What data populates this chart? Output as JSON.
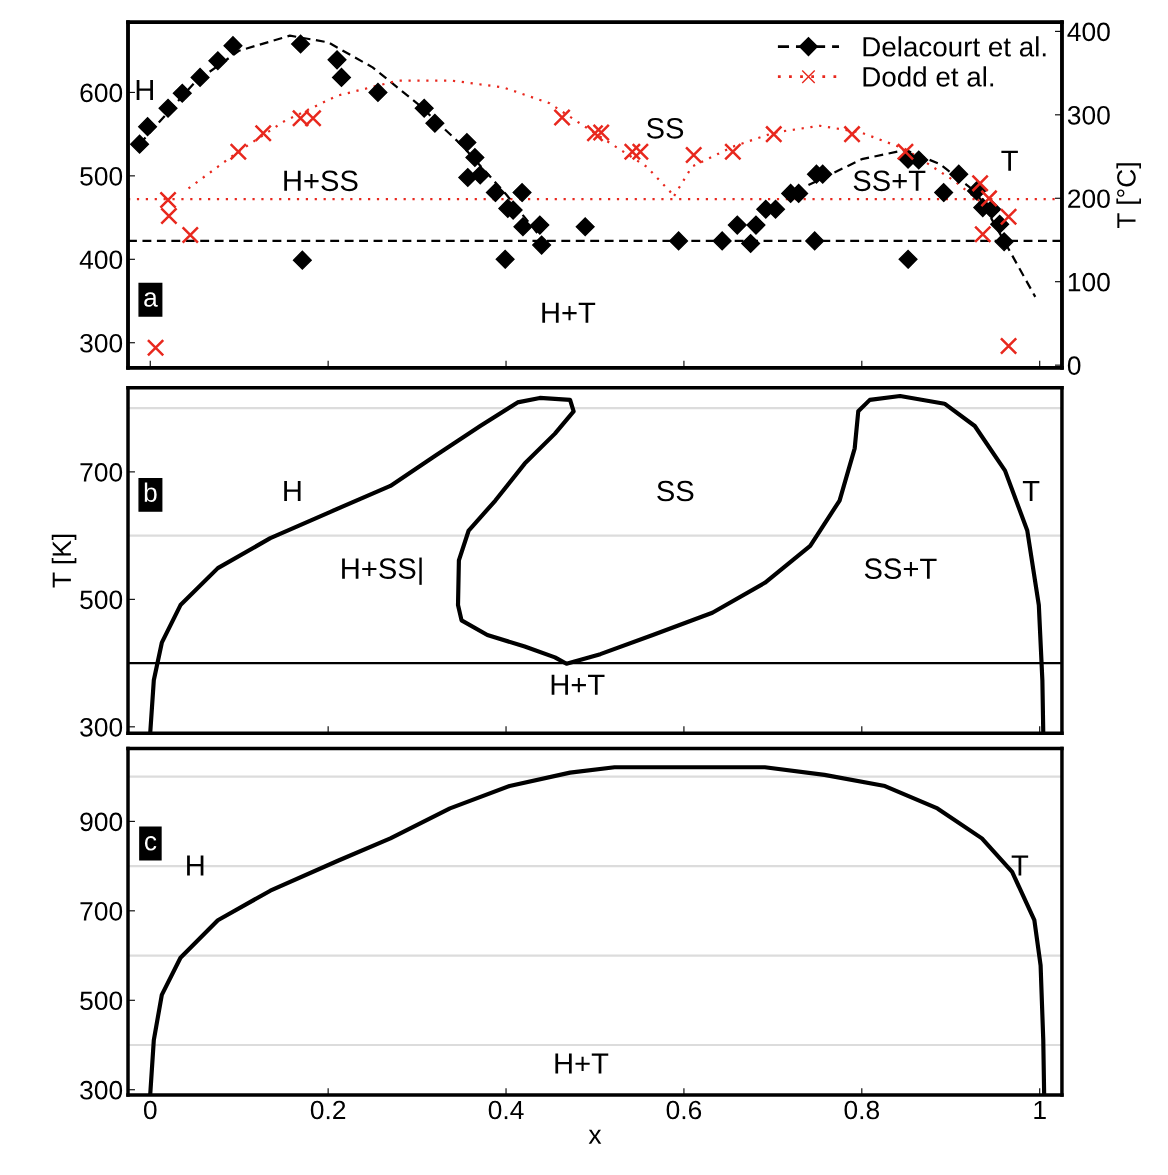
{
  "chart_data": [
    {
      "type": "scatter",
      "xlim": [
        -0.025,
        1.025
      ],
      "xticks": [
        0,
        0.2,
        0.4,
        0.6,
        0.8,
        1
      ],
      "ylim": [
        270,
        684
      ],
      "yticks": [
        300,
        400,
        500,
        600
      ],
      "y2lim": [
        -3.15,
        410.85
      ],
      "y2ticks": [
        0,
        100,
        200,
        300,
        400
      ],
      "y2label": "T [°C]",
      "tick_labels": "y",
      "legend": "top right",
      "series": [
        {
          "name": "Delacourt et al.",
          "type": "scatter",
          "color": "#000000",
          "marker": "diamond",
          "line_style": "dashed",
          "x": [
            -0.012,
            -0.003,
            0.02,
            0.036,
            0.056,
            0.076,
            0.093,
            0.169,
            0.21,
            0.215,
            0.256,
            0.308,
            0.32,
            0.356,
            0.365,
            0.357,
            0.371,
            0.388,
            0.402,
            0.408,
            0.418,
            0.419,
            0.438,
            0.44,
            0.399,
            0.171,
            0.489,
            0.594,
            0.643,
            0.66,
            0.675,
            0.681,
            0.692,
            0.703,
            0.72,
            0.729,
            0.749,
            0.756,
            0.747,
            0.852,
            0.864,
            0.852,
            0.892,
            0.909,
            0.929,
            0.936,
            0.946,
            0.955,
            0.96
          ],
          "values": [
            538,
            559,
            581,
            599,
            618,
            638,
            656,
            658,
            639,
            618,
            600,
            581,
            563,
            540,
            522,
            498,
            501,
            480,
            461,
            459,
            480,
            439,
            441,
            417,
            400,
            399,
            439,
            422,
            422,
            441,
            419,
            441,
            460,
            460,
            479,
            479,
            502,
            502,
            422,
            520,
            519,
            400,
            480,
            502,
            482,
            462,
            460,
            442,
            421
          ]
        },
        {
          "name": "Dodd et al.",
          "type": "scatter",
          "color": "#e8281e",
          "marker": "cross",
          "line_style": "dotted",
          "x": [
            0.02,
            0.021,
            0.045,
            0.099,
            0.127,
            0.169,
            0.183,
            0.463,
            0.5,
            0.507,
            0.542,
            0.551,
            0.611,
            0.655,
            0.701,
            0.789,
            0.849,
            0.933,
            0.943,
            0.936,
            0.965,
            0.006,
            0.965
          ],
          "values": [
            471,
            452,
            429,
            529,
            551,
            569,
            569,
            570,
            551,
            552,
            529,
            529,
            525,
            529,
            550,
            550,
            529,
            491,
            473,
            430,
            451,
            294,
            296
          ]
        },
        {
          "type": "line",
          "color": "#000000",
          "line_style": "dashed",
          "x": [
            -0.012,
            0.05,
            0.1,
            0.157,
            0.2,
            0.25,
            0.3,
            0.35,
            0.4,
            0.44
          ],
          "values": [
            538,
            612,
            650,
            668,
            660,
            630,
            587,
            537,
            478,
            425
          ]
        },
        {
          "type": "line",
          "color": "#000000",
          "line_style": "dashed",
          "x": [
            0.74,
            0.8,
            0.849,
            0.888,
            0.929,
            0.96,
            0.995
          ],
          "values": [
            489,
            520,
            531,
            514,
            480,
            422,
            355
          ]
        },
        {
          "type": "line",
          "color": "#e8281e",
          "line_style": "dotted",
          "x": [
            0.043,
            0.099,
            0.15,
            0.21,
            0.278,
            0.34,
            0.397,
            0.449,
            0.5,
            0.558,
            0.589
          ],
          "values": [
            485,
            529,
            565,
            596,
            614,
            614,
            606,
            587,
            551,
            511,
            476
          ]
        },
        {
          "type": "line",
          "color": "#e8281e",
          "line_style": "dotted",
          "x": [
            0.589,
            0.609,
            0.655,
            0.702,
            0.753,
            0.799,
            0.849,
            0.904,
            0.946
          ],
          "values": [
            476,
            511,
            535,
            552,
            560,
            552,
            532,
            494,
            458
          ]
        }
      ],
      "ref_lines": [
        {
          "axis": "y",
          "value": 422,
          "color": "#000000",
          "line_style": "dashed"
        },
        {
          "axis": "y",
          "value": 472,
          "color": "#e8281e",
          "line_style": "dotted"
        }
      ],
      "annotations": [
        "a",
        "H",
        "H+SS",
        "SS",
        "SS+T",
        "T",
        "H+T"
      ]
    },
    {
      "type": "line",
      "xlim": [
        -0.025,
        1.025
      ],
      "xticks": [
        0,
        0.2,
        0.4,
        0.6,
        0.8,
        1
      ],
      "ylim": [
        290,
        832
      ],
      "yticks": [
        300,
        500,
        700
      ],
      "ylabel": "T [K]",
      "tick_labels": "y",
      "series": [
        {
          "color": "#000000",
          "line_style": "solid",
          "x": [
            0.0,
            0.004,
            0.013,
            0.034,
            0.076,
            0.135,
            0.202,
            0.27,
            0.32,
            0.371,
            0.413,
            0.438,
            0.472,
            0.476,
            0.455,
            0.421,
            0.388,
            0.358,
            0.347,
            0.346,
            0.35,
            0.379,
            0.421,
            0.455,
            0.468,
            0.506,
            0.565,
            0.632,
            0.691,
            0.742,
            0.775,
            0.792,
            0.796,
            0.809,
            0.843,
            0.893,
            0.927,
            0.961,
            0.986,
            0.999,
            1.003,
            1.004
          ],
          "values": [
            291,
            373,
            432,
            491,
            549,
            596,
            637,
            678,
            725,
            772,
            809,
            816,
            813,
            795,
            760,
            713,
            655,
            608,
            561,
            491,
            467,
            444,
            426,
            409,
            399,
            414,
            444,
            479,
            526,
            584,
            655,
            737,
            795,
            813,
            819,
            807,
            772,
            702,
            608,
            491,
            373,
            291
          ]
        }
      ],
      "ref_lines": [
        {
          "axis": "y",
          "value": 400,
          "color": "#000000",
          "line_style": "solid"
        },
        {
          "axis": "y",
          "value": 600,
          "color": "#dcdcdc",
          "line_style": "solid"
        },
        {
          "axis": "y",
          "value": 800,
          "color": "#dcdcdc",
          "line_style": "solid"
        }
      ],
      "annotations": [
        "b",
        "H",
        "SS",
        "T",
        "H+SS|",
        "SS+T",
        "H+T"
      ]
    },
    {
      "type": "line",
      "xlim": [
        -0.025,
        1.025
      ],
      "xticks": [
        0,
        0.2,
        0.4,
        0.6,
        0.8,
        1
      ],
      "xlabel": "x",
      "ylim": [
        288,
        1063
      ],
      "yticks": [
        300,
        500,
        700,
        900
      ],
      "series": [
        {
          "color": "#000000",
          "line_style": "solid",
          "x": [
            0.0,
            0.004,
            0.013,
            0.034,
            0.076,
            0.135,
            0.211,
            0.27,
            0.337,
            0.404,
            0.472,
            0.522,
            0.691,
            0.758,
            0.826,
            0.885,
            0.935,
            0.969,
            0.994,
            1.001,
            1.004,
            1.005
          ],
          "values": [
            290,
            411,
            512,
            595,
            679,
            745,
            812,
            862,
            929,
            979,
            1009,
            1021,
            1021,
            1004,
            979,
            929,
            862,
            787,
            679,
            578,
            411,
            290
          ]
        }
      ],
      "ref_lines": [
        {
          "axis": "y",
          "value": 400,
          "color": "#dcdcdc",
          "line_style": "solid"
        },
        {
          "axis": "y",
          "value": 600,
          "color": "#dcdcdc",
          "line_style": "solid"
        },
        {
          "axis": "y",
          "value": 800,
          "color": "#dcdcdc",
          "line_style": "solid"
        },
        {
          "axis": "y",
          "value": 1000,
          "color": "#dcdcdc",
          "line_style": "solid"
        }
      ],
      "annotations": [
        "c",
        "H",
        "T",
        "H+T"
      ]
    }
  ]
}
